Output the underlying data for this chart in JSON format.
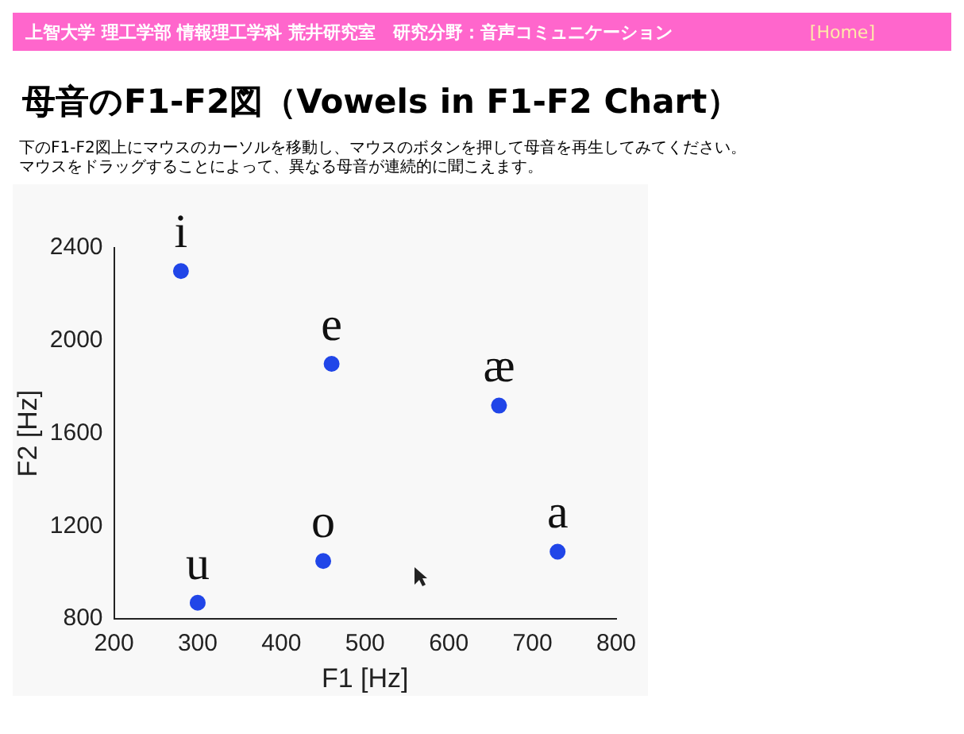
{
  "chart_data": {
    "type": "scatter",
    "title": "母音のF1-F2図（Vowels in F1-F2 Chart）",
    "subtitle": "下のF1-F2図上にマウスのカーソルを移動し、マウスのボタンを押して母音を再生してみてください。マウスをドラッグすることによって、異なる母音が連続的に聞こえます。",
    "xlabel": "F1 [Hz]",
    "ylabel": "F2 [Hz]",
    "x": [
      280,
      460,
      660,
      730,
      450,
      300
    ],
    "values": [
      2300,
      1900,
      1720,
      1090,
      1050,
      870
    ],
    "color": "#2146e8",
    "marker": "circle",
    "grid": false,
    "legend": false,
    "xlim": [
      200,
      800
    ],
    "xticks": [
      200,
      300,
      400,
      500,
      600,
      700,
      800
    ],
    "ylim": [
      800,
      2400
    ],
    "yticks": [
      800,
      1200,
      1600,
      2000,
      2400
    ],
    "annotations": [
      "上智大学 理工学部 情報理工学科 荒井研究室　研究分野：音声コミュニケーション",
      "[Home]",
      {
        "text": "i",
        "x": 280,
        "y": 2300
      },
      {
        "text": "e",
        "x": 460,
        "y": 1900
      },
      {
        "text": "æ",
        "x": 660,
        "y": 1720
      },
      {
        "text": "a",
        "x": 730,
        "y": 1090
      },
      {
        "text": "o",
        "x": 450,
        "y": 1050
      },
      {
        "text": "u",
        "x": 300,
        "y": 870
      }
    ]
  }
}
